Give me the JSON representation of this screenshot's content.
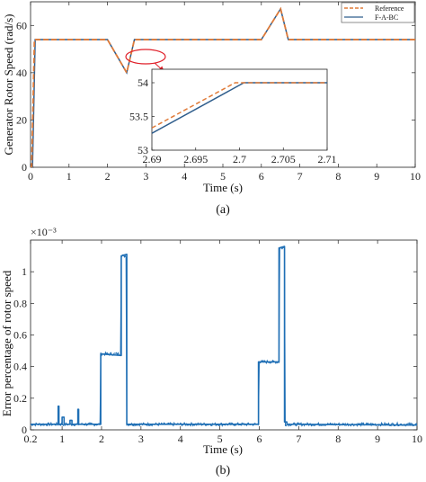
{
  "colors": {
    "reference": "#e07b39",
    "f_a_bc": "#2f5d8c",
    "error": "#1f6fb5",
    "callout": "#e0202a",
    "axis": "#222222"
  },
  "chart_data": [
    {
      "type": "line",
      "panel_label": "(a)",
      "xlabel": "Time (s)",
      "ylabel": "Generator Rotor Speed (rad/s)",
      "xlim": [
        0,
        10
      ],
      "ylim": [
        0,
        70
      ],
      "xticks": [
        0,
        1,
        2,
        3,
        4,
        5,
        6,
        7,
        8,
        9,
        10
      ],
      "yticks": [
        0,
        20,
        40,
        60
      ],
      "legend_position": "top-right",
      "series": [
        {
          "name": "Reference",
          "style": "dashed",
          "x": [
            0,
            0.03,
            0.1,
            2.0,
            2.5,
            2.7,
            6.0,
            6.5,
            6.7,
            10
          ],
          "y": [
            0,
            0,
            54,
            54,
            40,
            54,
            54,
            67,
            54,
            54
          ]
        },
        {
          "name": "F-A-BC",
          "style": "solid",
          "x": [
            0,
            0.05,
            0.12,
            2.0,
            2.5,
            2.7,
            6.0,
            6.5,
            6.7,
            10
          ],
          "y": [
            0,
            0,
            54,
            54,
            40,
            54,
            54,
            67,
            54,
            54
          ]
        }
      ],
      "inset": {
        "xlim": [
          2.69,
          2.71
        ],
        "ylim": [
          53,
          54.2
        ],
        "xticks": [
          2.69,
          2.695,
          2.7,
          2.705,
          2.71
        ],
        "xtick_labels": [
          "2.69",
          "2.695",
          "2.7",
          "2.705",
          "2.71"
        ],
        "yticks": [
          53,
          53.5,
          54
        ],
        "ytick_labels": [
          "53",
          "53.5",
          "54"
        ],
        "series": [
          {
            "name": "Reference",
            "x": [
              2.69,
              2.6995,
              2.71
            ],
            "y": [
              53.33,
              54.0,
              54.0
            ]
          },
          {
            "name": "F-A-BC",
            "x": [
              2.69,
              2.7005,
              2.71
            ],
            "y": [
              53.25,
              54.0,
              54.0
            ]
          }
        ]
      }
    },
    {
      "type": "line",
      "panel_label": "(b)",
      "xlabel": "Time (s)",
      "ylabel": "Error percentage of rotor speed",
      "exponent_label": "×10⁻³",
      "xlim": [
        0.2,
        10
      ],
      "ylim": [
        0,
        1.2
      ],
      "xticks": [
        0.2,
        1,
        2,
        3,
        4,
        5,
        6,
        7,
        8,
        9,
        10
      ],
      "xtick_labels": [
        "0.2",
        "1",
        "2",
        "3",
        "4",
        "5",
        "6",
        "7",
        "8",
        "9",
        "10"
      ],
      "yticks": [
        0,
        0.2,
        0.4,
        0.6,
        0.8,
        1
      ],
      "ytick_labels": [
        "0",
        "0.2",
        "0.4",
        "0.6",
        "0.8",
        "1"
      ],
      "series": [
        {
          "name": "Error",
          "x": [
            0.2,
            0.9,
            0.9,
            0.92,
            0.92,
            1.0,
            1.0,
            1.05,
            1.05,
            1.2,
            1.2,
            1.25,
            1.25,
            1.4,
            1.4,
            1.42,
            1.42,
            1.98,
            1.98,
            2.5,
            2.5,
            2.64,
            2.64,
            2.66,
            2.66,
            5.98,
            5.98,
            6.5,
            6.5,
            6.64,
            6.64,
            6.7,
            6.7,
            10
          ],
          "y": [
            0.035,
            0.035,
            0.15,
            0.15,
            0.035,
            0.035,
            0.08,
            0.08,
            0.035,
            0.035,
            0.06,
            0.06,
            0.035,
            0.035,
            0.13,
            0.13,
            0.035,
            0.035,
            0.48,
            0.47,
            1.1,
            1.11,
            0.035,
            0.035,
            0.035,
            0.035,
            0.43,
            0.43,
            1.15,
            1.16,
            0.05,
            0.05,
            0.035,
            0.03
          ]
        }
      ]
    }
  ]
}
